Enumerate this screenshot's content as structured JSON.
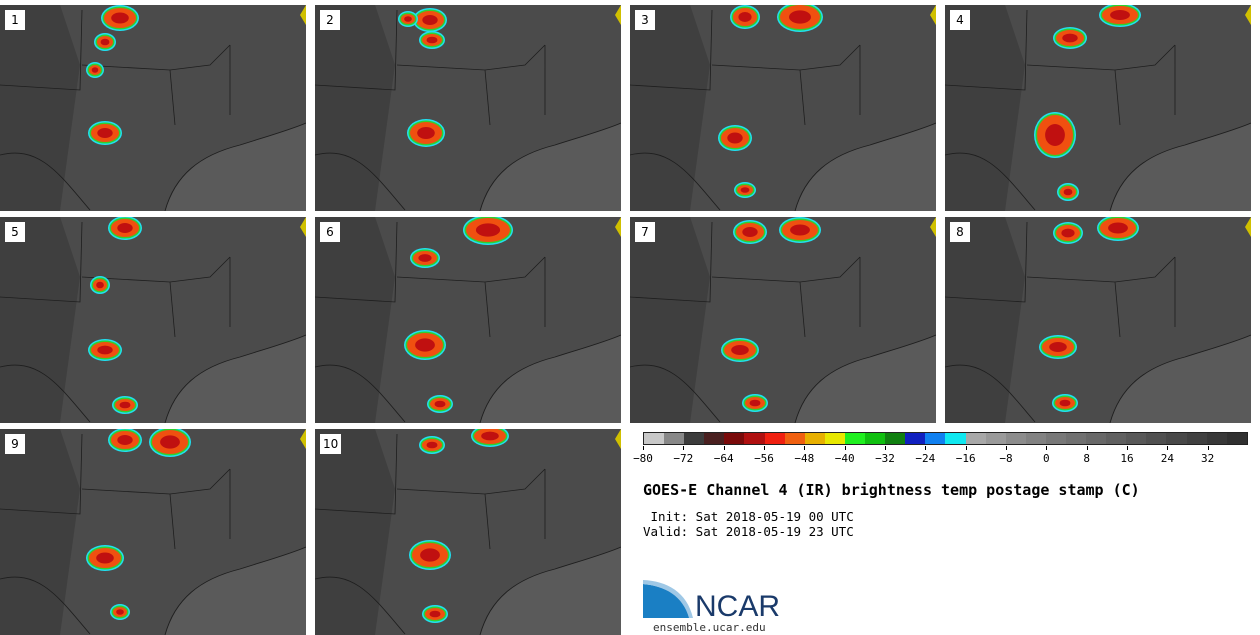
{
  "panels": [
    {
      "label": "1"
    },
    {
      "label": "2"
    },
    {
      "label": "3"
    },
    {
      "label": "4"
    },
    {
      "label": "5"
    },
    {
      "label": "6"
    },
    {
      "label": "7"
    },
    {
      "label": "8"
    },
    {
      "label": "9"
    },
    {
      "label": "10"
    }
  ],
  "colorbar": {
    "colors": [
      "#c8c8c8",
      "#888888",
      "#3c3c3c",
      "#4a2020",
      "#7a0a0a",
      "#b01010",
      "#f02010",
      "#f06010",
      "#e8b000",
      "#e8e800",
      "#20f020",
      "#10c010",
      "#108010",
      "#1020c0",
      "#1080f0",
      "#10e8f0",
      "#a8a8a8",
      "#9a9a9a",
      "#8c8c8c",
      "#828282",
      "#787878",
      "#707070",
      "#686868",
      "#606060",
      "#585858",
      "#505050",
      "#484848",
      "#404040",
      "#383838",
      "#303030"
    ],
    "ticks": [
      "−80",
      "−72",
      "−64",
      "−56",
      "−48",
      "−40",
      "−32",
      "−24",
      "−16",
      "−8",
      "0",
      "8",
      "16",
      "24",
      "32"
    ]
  },
  "title": "GOES-E Channel 4 (IR) brightness temp postage stamp (C)",
  "init_line": " Init: Sat 2018-05-19 00 UTC",
  "valid_line": "Valid: Sat 2018-05-19 23 UTC",
  "logo": {
    "text": "NCAR",
    "url": "ensemble.ucar.edu"
  }
}
